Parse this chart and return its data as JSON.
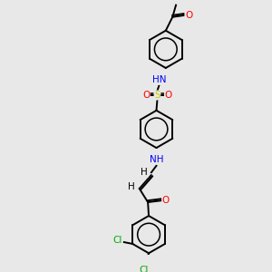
{
  "background_color": "#e8e8e8",
  "bond_color": "#000000",
  "colors": {
    "O": "#ff0000",
    "N": "#0000ff",
    "S": "#cccc00",
    "Cl": "#00aa00",
    "C": "#000000",
    "H": "#000000"
  },
  "font_size": 7.5,
  "lw": 1.4
}
